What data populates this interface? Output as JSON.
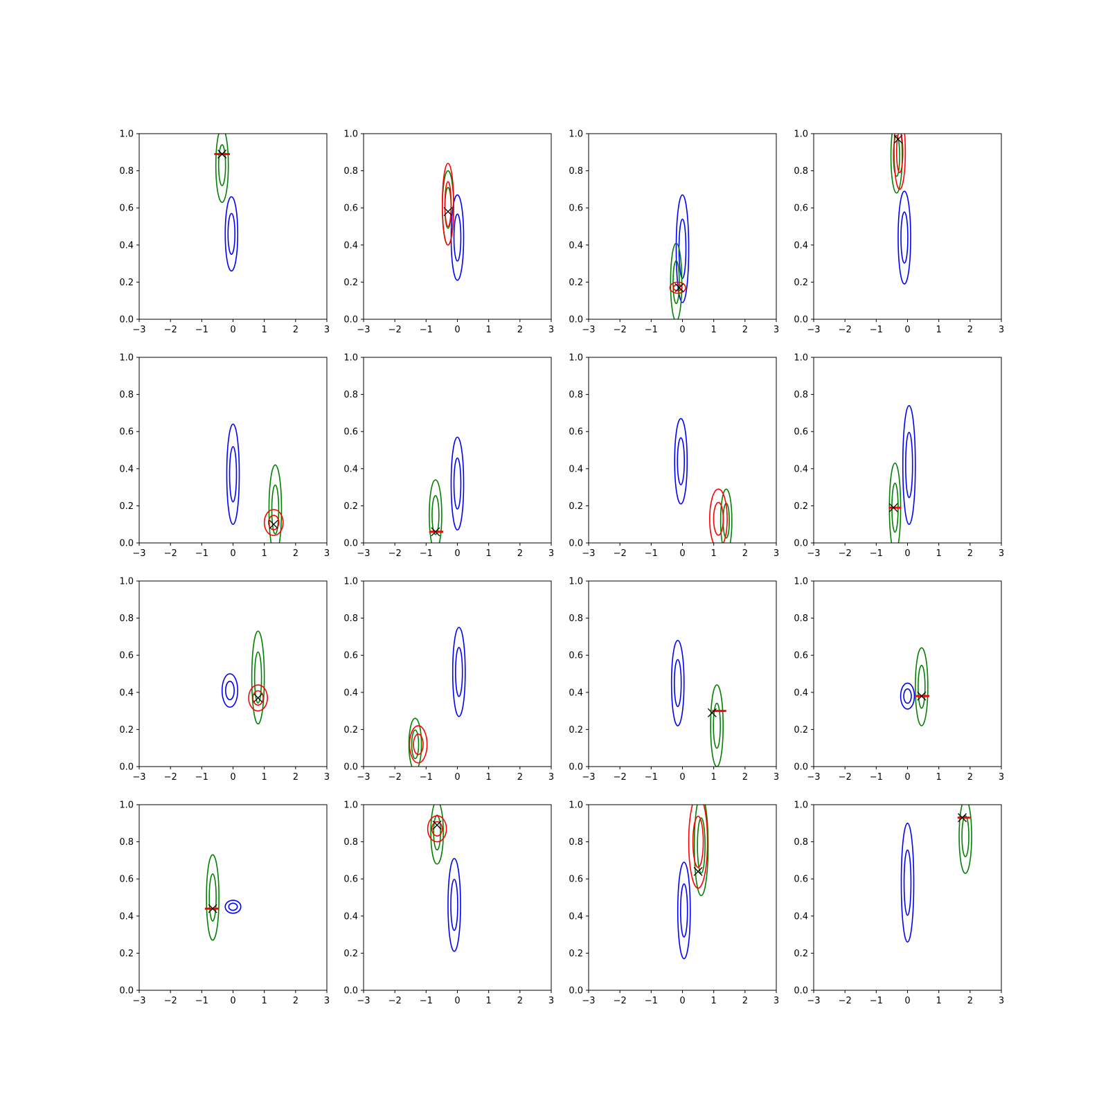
{
  "figure": {
    "rows": 4,
    "cols": 4,
    "background": "#ffffff"
  },
  "colors": {
    "blue": "#0000ff",
    "green": "#008000",
    "red": "#ff0000",
    "marker": "#000000"
  },
  "chart_data": [
    {
      "type": "contour",
      "xlim": [
        -3,
        3
      ],
      "ylim": [
        0,
        1
      ],
      "xticks": [
        "−3",
        "−2",
        "−1",
        "0",
        "1",
        "2",
        "3"
      ],
      "yticks": [
        "0.0",
        "0.2",
        "0.4",
        "0.6",
        "0.8",
        "1.0"
      ],
      "blue": {
        "cx": -0.05,
        "cy": 0.46,
        "sx": 0.2,
        "sy": 0.2
      },
      "green": {
        "cx": -0.35,
        "cy": 0.83,
        "sx": 0.2,
        "sy": 0.2
      },
      "red": null,
      "marker": {
        "x": -0.35,
        "y": 0.89
      },
      "bar": {
        "x1": -0.6,
        "x2": -0.1,
        "y": 0.89
      }
    },
    {
      "type": "contour",
      "xlim": [
        -3,
        3
      ],
      "ylim": [
        0,
        1
      ],
      "xticks": [
        "−3",
        "−2",
        "−1",
        "0",
        "1",
        "2",
        "3"
      ],
      "yticks": [
        "0.0",
        "0.2",
        "0.4",
        "0.6",
        "0.8",
        "1.0"
      ],
      "blue": {
        "cx": 0.0,
        "cy": 0.44,
        "sx": 0.2,
        "sy": 0.23
      },
      "green": {
        "cx": -0.3,
        "cy": 0.6,
        "sx": 0.18,
        "sy": 0.2
      },
      "red": {
        "cx": -0.3,
        "cy": 0.62,
        "sx": 0.18,
        "sy": 0.22
      },
      "marker": {
        "x": -0.3,
        "y": 0.58
      },
      "bar": null
    },
    {
      "type": "contour",
      "xlim": [
        -3,
        3
      ],
      "ylim": [
        0,
        1
      ],
      "xticks": [
        "−3",
        "−2",
        "−1",
        "0",
        "1",
        "2",
        "3"
      ],
      "yticks": [
        "0.0",
        "0.2",
        "0.4",
        "0.6",
        "0.8",
        "1.0"
      ],
      "blue": {
        "cx": 0.0,
        "cy": 0.38,
        "sx": 0.2,
        "sy": 0.29
      },
      "green": {
        "cx": -0.2,
        "cy": 0.2,
        "sx": 0.18,
        "sy": 0.21
      },
      "red": {
        "cx": -0.15,
        "cy": 0.17,
        "sx": 0.25,
        "sy": 0.03
      },
      "marker": {
        "x": -0.1,
        "y": 0.17
      },
      "bar": null
    },
    {
      "type": "contour",
      "xlim": [
        -3,
        3
      ],
      "ylim": [
        0,
        1
      ],
      "xticks": [
        "−3",
        "−2",
        "−1",
        "0",
        "1",
        "2",
        "3"
      ],
      "yticks": [
        "0.0",
        "0.2",
        "0.4",
        "0.6",
        "0.8",
        "1.0"
      ],
      "blue": {
        "cx": -0.1,
        "cy": 0.44,
        "sx": 0.2,
        "sy": 0.25
      },
      "green": {
        "cx": -0.35,
        "cy": 0.88,
        "sx": 0.18,
        "sy": 0.2
      },
      "red": {
        "cx": -0.25,
        "cy": 0.9,
        "sx": 0.18,
        "sy": 0.2
      },
      "marker": {
        "x": -0.3,
        "y": 0.97
      },
      "bar": null
    },
    {
      "type": "contour",
      "xlim": [
        -3,
        3
      ],
      "ylim": [
        0,
        1
      ],
      "xticks": [
        "−3",
        "−2",
        "−1",
        "0",
        "1",
        "2",
        "3"
      ],
      "yticks": [
        "0.0",
        "0.2",
        "0.4",
        "0.6",
        "0.8",
        "1.0"
      ],
      "blue": {
        "cx": 0.0,
        "cy": 0.37,
        "sx": 0.2,
        "sy": 0.27
      },
      "green": {
        "cx": 1.35,
        "cy": 0.18,
        "sx": 0.2,
        "sy": 0.24
      },
      "red": {
        "cx": 1.3,
        "cy": 0.11,
        "sx": 0.3,
        "sy": 0.07
      },
      "marker": {
        "x": 1.3,
        "y": 0.1
      },
      "bar": null
    },
    {
      "type": "contour",
      "xlim": [
        -3,
        3
      ],
      "ylim": [
        0,
        1
      ],
      "xticks": [
        "−3",
        "−2",
        "−1",
        "0",
        "1",
        "2",
        "3"
      ],
      "yticks": [
        "0.0",
        "0.2",
        "0.4",
        "0.6",
        "0.8",
        "1.0"
      ],
      "blue": {
        "cx": 0.0,
        "cy": 0.32,
        "sx": 0.2,
        "sy": 0.25
      },
      "green": {
        "cx": -0.7,
        "cy": 0.15,
        "sx": 0.2,
        "sy": 0.19
      },
      "red": null,
      "marker": {
        "x": -0.7,
        "y": 0.06
      },
      "bar": {
        "x1": -0.9,
        "x2": -0.45,
        "y": 0.06
      }
    },
    {
      "type": "contour",
      "xlim": [
        -3,
        3
      ],
      "ylim": [
        0,
        1
      ],
      "xticks": [
        "−3",
        "−2",
        "−1",
        "0",
        "1",
        "2",
        "3"
      ],
      "yticks": [
        "0.0",
        "0.2",
        "0.4",
        "0.6",
        "0.8",
        "1.0"
      ],
      "blue": {
        "cx": -0.05,
        "cy": 0.44,
        "sx": 0.2,
        "sy": 0.23
      },
      "green": {
        "cx": 1.4,
        "cy": 0.12,
        "sx": 0.18,
        "sy": 0.17
      },
      "red": {
        "cx": 1.15,
        "cy": 0.13,
        "sx": 0.28,
        "sy": 0.16
      },
      "marker": null,
      "bar": null
    },
    {
      "type": "contour",
      "xlim": [
        -3,
        3
      ],
      "ylim": [
        0,
        1
      ],
      "xticks": [
        "−3",
        "−2",
        "−1",
        "0",
        "1",
        "2",
        "3"
      ],
      "yticks": [
        "0.0",
        "0.2",
        "0.4",
        "0.6",
        "0.8",
        "1.0"
      ],
      "blue": {
        "cx": 0.05,
        "cy": 0.42,
        "sx": 0.2,
        "sy": 0.32
      },
      "green": {
        "cx": -0.4,
        "cy": 0.19,
        "sx": 0.18,
        "sy": 0.24
      },
      "red": null,
      "marker": {
        "x": -0.45,
        "y": 0.19
      },
      "bar": {
        "x1": -0.6,
        "x2": -0.2,
        "y": 0.19
      }
    },
    {
      "type": "contour",
      "xlim": [
        -3,
        3
      ],
      "ylim": [
        0,
        1
      ],
      "xticks": [
        "−3",
        "−2",
        "−1",
        "0",
        "1",
        "2",
        "3"
      ],
      "yticks": [
        "0.0",
        "0.2",
        "0.4",
        "0.6",
        "0.8",
        "1.0"
      ],
      "blue": {
        "cx": -0.1,
        "cy": 0.41,
        "sx": 0.25,
        "sy": 0.09
      },
      "green": {
        "cx": 0.8,
        "cy": 0.48,
        "sx": 0.2,
        "sy": 0.25
      },
      "red": {
        "cx": 0.8,
        "cy": 0.37,
        "sx": 0.3,
        "sy": 0.07
      },
      "marker": {
        "x": 0.8,
        "y": 0.37
      },
      "bar": null
    },
    {
      "type": "contour",
      "xlim": [
        -3,
        3
      ],
      "ylim": [
        0,
        1
      ],
      "xticks": [
        "−3",
        "−2",
        "−1",
        "0",
        "1",
        "2",
        "3"
      ],
      "yticks": [
        "0.0",
        "0.2",
        "0.4",
        "0.6",
        "0.8",
        "1.0"
      ],
      "blue": {
        "cx": 0.05,
        "cy": 0.51,
        "sx": 0.2,
        "sy": 0.24
      },
      "green": {
        "cx": -1.35,
        "cy": 0.12,
        "sx": 0.2,
        "sy": 0.14
      },
      "red": {
        "cx": -1.25,
        "cy": 0.12,
        "sx": 0.28,
        "sy": 0.1
      },
      "marker": null,
      "bar": null
    },
    {
      "type": "contour",
      "xlim": [
        -3,
        3
      ],
      "ylim": [
        0,
        1
      ],
      "xticks": [
        "−3",
        "−2",
        "−1",
        "0",
        "1",
        "2",
        "3"
      ],
      "yticks": [
        "0.0",
        "0.2",
        "0.4",
        "0.6",
        "0.8",
        "1.0"
      ],
      "blue": {
        "cx": -0.15,
        "cy": 0.45,
        "sx": 0.2,
        "sy": 0.23
      },
      "green": {
        "cx": 1.1,
        "cy": 0.22,
        "sx": 0.2,
        "sy": 0.22
      },
      "red": null,
      "marker": {
        "x": 0.95,
        "y": 0.29
      },
      "bar": {
        "x1": 0.95,
        "x2": 1.4,
        "y": 0.3
      }
    },
    {
      "type": "contour",
      "xlim": [
        -3,
        3
      ],
      "ylim": [
        0,
        1
      ],
      "xticks": [
        "−3",
        "−2",
        "−1",
        "0",
        "1",
        "2",
        "3"
      ],
      "yticks": [
        "0.0",
        "0.2",
        "0.4",
        "0.6",
        "0.8",
        "1.0"
      ],
      "blue": {
        "cx": 0.0,
        "cy": 0.38,
        "sx": 0.22,
        "sy": 0.07
      },
      "green": {
        "cx": 0.45,
        "cy": 0.43,
        "sx": 0.2,
        "sy": 0.21
      },
      "red": null,
      "marker": {
        "x": 0.45,
        "y": 0.38
      },
      "bar": {
        "x1": 0.25,
        "x2": 0.7,
        "y": 0.38
      }
    },
    {
      "type": "contour",
      "xlim": [
        -3,
        3
      ],
      "ylim": [
        0,
        1
      ],
      "xticks": [
        "−3",
        "−2",
        "−1",
        "0",
        "1",
        "2",
        "3"
      ],
      "yticks": [
        "0.0",
        "0.2",
        "0.4",
        "0.6",
        "0.8",
        "1.0"
      ],
      "blue": {
        "cx": 0.0,
        "cy": 0.45,
        "sx": 0.25,
        "sy": 0.035
      },
      "green": {
        "cx": -0.65,
        "cy": 0.5,
        "sx": 0.2,
        "sy": 0.23
      },
      "red": null,
      "marker": {
        "x": -0.65,
        "y": 0.44
      },
      "bar": {
        "x1": -0.9,
        "x2": -0.45,
        "y": 0.44
      }
    },
    {
      "type": "contour",
      "xlim": [
        -3,
        3
      ],
      "ylim": [
        0,
        1
      ],
      "xticks": [
        "−3",
        "−2",
        "−1",
        "0",
        "1",
        "2",
        "3"
      ],
      "yticks": [
        "0.0",
        "0.2",
        "0.4",
        "0.6",
        "0.8",
        "1.0"
      ],
      "blue": {
        "cx": -0.1,
        "cy": 0.46,
        "sx": 0.2,
        "sy": 0.25
      },
      "green": {
        "cx": -0.65,
        "cy": 0.85,
        "sx": 0.2,
        "sy": 0.17
      },
      "red": {
        "cx": -0.65,
        "cy": 0.87,
        "sx": 0.3,
        "sy": 0.07
      },
      "marker": {
        "x": -0.65,
        "y": 0.89
      },
      "bar": null
    },
    {
      "type": "contour",
      "xlim": [
        -3,
        3
      ],
      "ylim": [
        0,
        1
      ],
      "xticks": [
        "−3",
        "−2",
        "−1",
        "0",
        "1",
        "2",
        "3"
      ],
      "yticks": [
        "0.0",
        "0.2",
        "0.4",
        "0.6",
        "0.8",
        "1.0"
      ],
      "blue": {
        "cx": 0.05,
        "cy": 0.43,
        "sx": 0.2,
        "sy": 0.26
      },
      "green": {
        "cx": 0.6,
        "cy": 0.78,
        "sx": 0.22,
        "sy": 0.27
      },
      "red": {
        "cx": 0.5,
        "cy": 0.8,
        "sx": 0.3,
        "sy": 0.25
      },
      "marker": {
        "x": 0.5,
        "y": 0.64
      },
      "bar": null
    },
    {
      "type": "contour",
      "xlim": [
        -3,
        3
      ],
      "ylim": [
        0,
        1
      ],
      "xticks": [
        "−3",
        "−2",
        "−1",
        "0",
        "1",
        "2",
        "3"
      ],
      "yticks": [
        "0.0",
        "0.2",
        "0.4",
        "0.6",
        "0.8",
        "1.0"
      ],
      "blue": {
        "cx": 0.0,
        "cy": 0.58,
        "sx": 0.2,
        "sy": 0.32
      },
      "green": {
        "cx": 1.85,
        "cy": 0.83,
        "sx": 0.2,
        "sy": 0.2
      },
      "red": null,
      "marker": {
        "x": 1.75,
        "y": 0.93
      },
      "bar": {
        "x1": 1.6,
        "x2": 2.0,
        "y": 0.93
      }
    }
  ]
}
